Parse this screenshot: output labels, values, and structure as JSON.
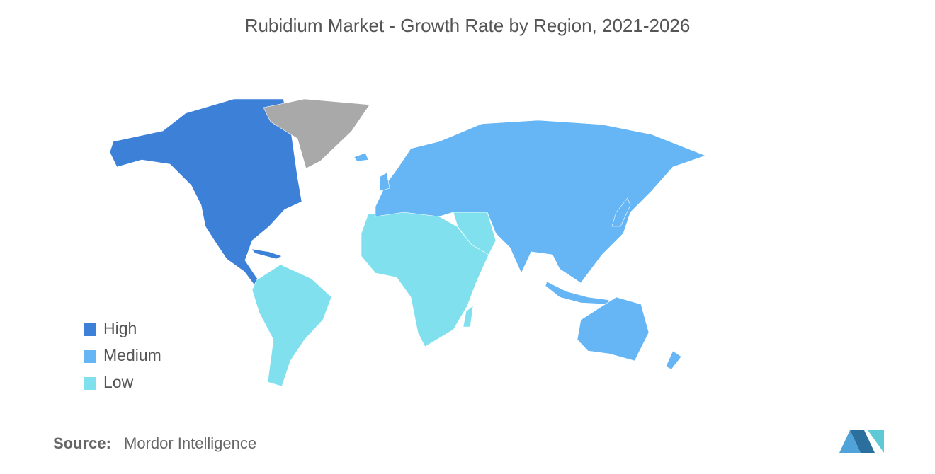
{
  "title": "Rubidium Market - Growth Rate by Region, 2021-2026",
  "legend": [
    {
      "label": "High",
      "color": "#3c80d8"
    },
    {
      "label": "Medium",
      "color": "#66b6f6"
    },
    {
      "label": "Low",
      "color": "#80e0ee"
    }
  ],
  "no_data_color": "#a9a9a9",
  "source": {
    "label": "Source:",
    "text": "Mordor Intelligence"
  }
}
